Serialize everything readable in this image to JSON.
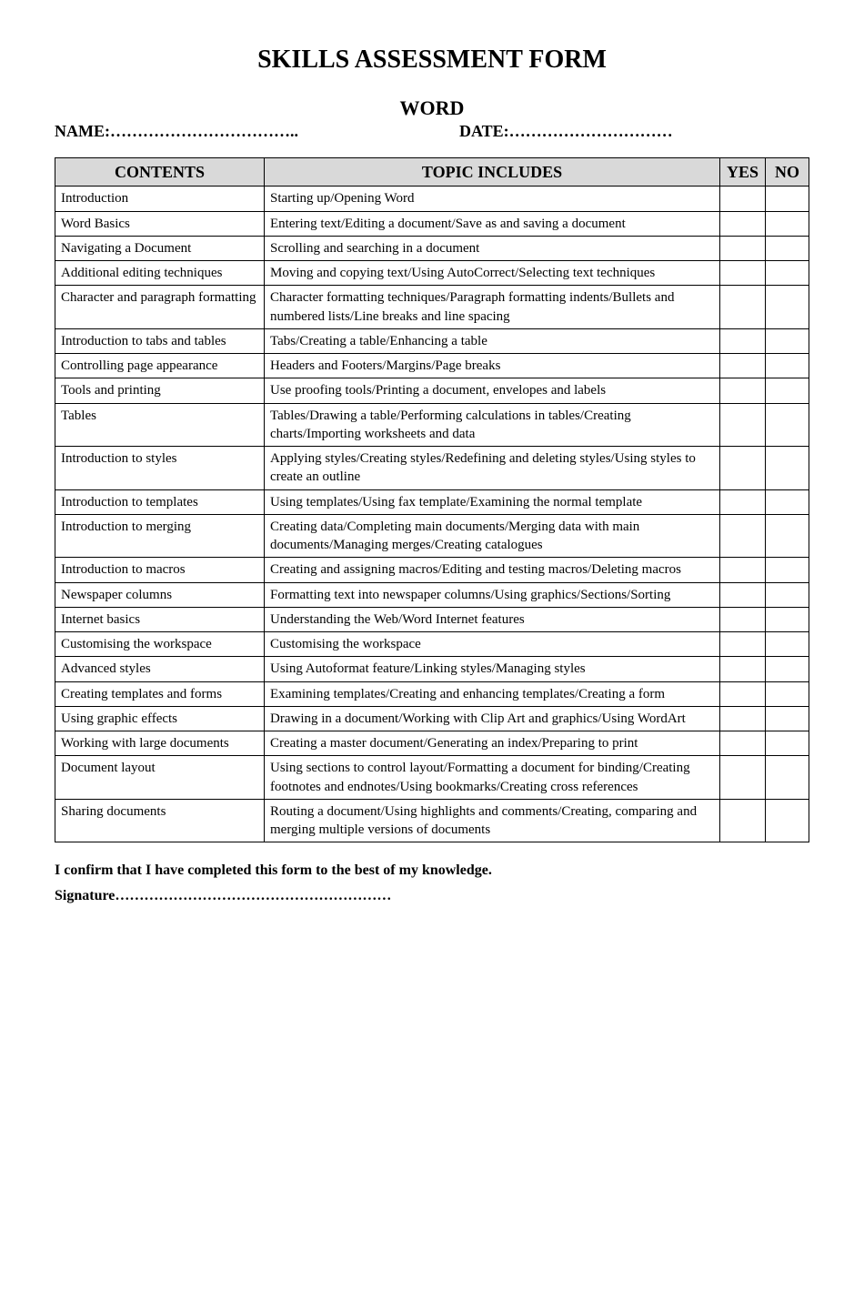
{
  "title": "SKILLS ASSESSMENT FORM",
  "subtitle": "WORD",
  "name_label": "NAME:……………………………..",
  "date_label": "DATE:…………………………",
  "headers": {
    "contents": "CONTENTS",
    "topic": "TOPIC INCLUDES",
    "yes": "YES",
    "no": "NO"
  },
  "rows": [
    {
      "contents": "Introduction",
      "topic": "Starting up/Opening Word"
    },
    {
      "contents": "Word Basics",
      "topic": "Entering text/Editing a document/Save as and saving a document"
    },
    {
      "contents": "Navigating a Document",
      "topic": "Scrolling and searching in a document"
    },
    {
      "contents": "Additional editing techniques",
      "topic": "Moving and copying text/Using AutoCorrect/Selecting text techniques"
    },
    {
      "contents": "Character and paragraph formatting",
      "topic": "Character formatting techniques/Paragraph formatting indents/Bullets and numbered lists/Line breaks and line spacing"
    },
    {
      "contents": "Introduction to tabs and tables",
      "topic": "Tabs/Creating a table/Enhancing a table"
    },
    {
      "contents": "Controlling page appearance",
      "topic": "Headers and Footers/Margins/Page breaks"
    },
    {
      "contents": "Tools and printing",
      "topic": "Use proofing tools/Printing a document, envelopes and labels"
    },
    {
      "contents": "Tables",
      "topic": "Tables/Drawing a table/Performing calculations in tables/Creating charts/Importing worksheets and data"
    },
    {
      "contents": "Introduction to styles",
      "topic": "Applying styles/Creating styles/Redefining and deleting styles/Using styles to create an outline"
    },
    {
      "contents": "Introduction to templates",
      "topic": "Using templates/Using fax template/Examining the normal template"
    },
    {
      "contents": "Introduction to merging",
      "topic": "Creating data/Completing main documents/Merging data with main documents/Managing merges/Creating catalogues"
    },
    {
      "contents": "Introduction to macros",
      "topic": "Creating and assigning macros/Editing and testing macros/Deleting macros"
    },
    {
      "contents": "Newspaper columns",
      "topic": "Formatting text into newspaper columns/Using graphics/Sections/Sorting"
    },
    {
      "contents": "Internet basics",
      "topic": "Understanding the Web/Word Internet features"
    },
    {
      "contents": "Customising the workspace",
      "topic": "Customising the workspace"
    },
    {
      "contents": "Advanced styles",
      "topic": "Using Autoformat feature/Linking styles/Managing styles"
    },
    {
      "contents": "Creating templates and forms",
      "topic": "Examining templates/Creating and enhancing templates/Creating a form"
    },
    {
      "contents": "Using graphic effects",
      "topic": "Drawing in a document/Working with Clip Art and graphics/Using WordArt"
    },
    {
      "contents": "Working with large documents",
      "topic": "Creating a master document/Generating an index/Preparing to print"
    },
    {
      "contents": "Document layout",
      "topic": "Using sections to control layout/Formatting a document for binding/Creating footnotes and endnotes/Using bookmarks/Creating cross references"
    },
    {
      "contents": "Sharing documents",
      "topic": "Routing a document/Using highlights and comments/Creating, comparing and merging multiple versions of documents"
    }
  ],
  "confirm_text": "I confirm that I have completed this form to the best of my knowledge.",
  "signature_text": "Signature…………………………………………………",
  "style": {
    "page_bg": "#ffffff",
    "text_color": "#000000",
    "header_bg": "#d9d9d9",
    "border_color": "#000000",
    "title_fontsize": 28,
    "subtitle_fontsize": 22,
    "label_fontsize": 18,
    "body_fontsize": 15,
    "confirm_fontsize": 16
  }
}
